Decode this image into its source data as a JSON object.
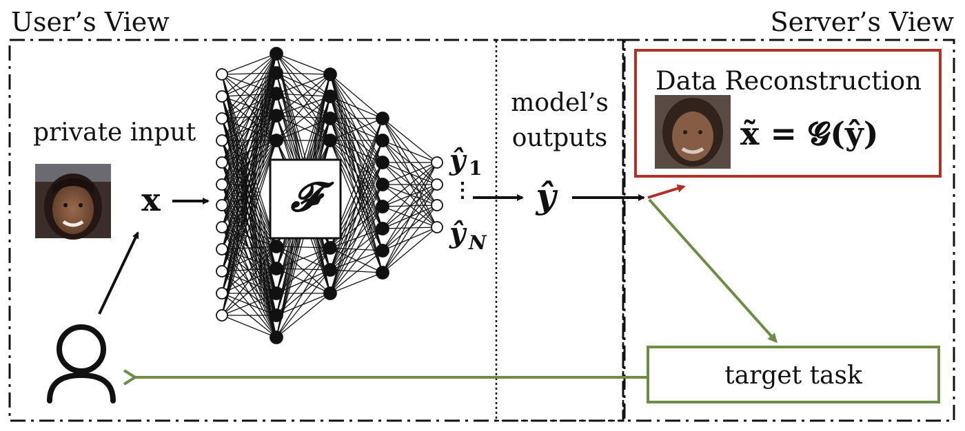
{
  "labels": {
    "user_view": "User’s View",
    "server_view": "Server’s View",
    "private_input": "private input",
    "input_symbol": "x",
    "model_symbol": "𝓕",
    "output_first": "ŷ",
    "output_first_sub": "1",
    "output_last": "ŷ",
    "output_last_sub": "N",
    "output_dots": "⋮",
    "model_outputs_line1": "model’s",
    "model_outputs_line2": "outputs",
    "output_symbol": "ŷ",
    "data_reconstruction": "Data Reconstruction",
    "reconstruction_formula": "x̃ = 𝓖(ŷ)",
    "target_task": "target task"
  },
  "colors": {
    "attack": "#b03026",
    "task": "#6e8c45",
    "line": "#111111"
  },
  "icons": {
    "user": "person-outline-icon",
    "input_face": "face-photo",
    "reconstructed_face": "face-photo-blurred"
  }
}
